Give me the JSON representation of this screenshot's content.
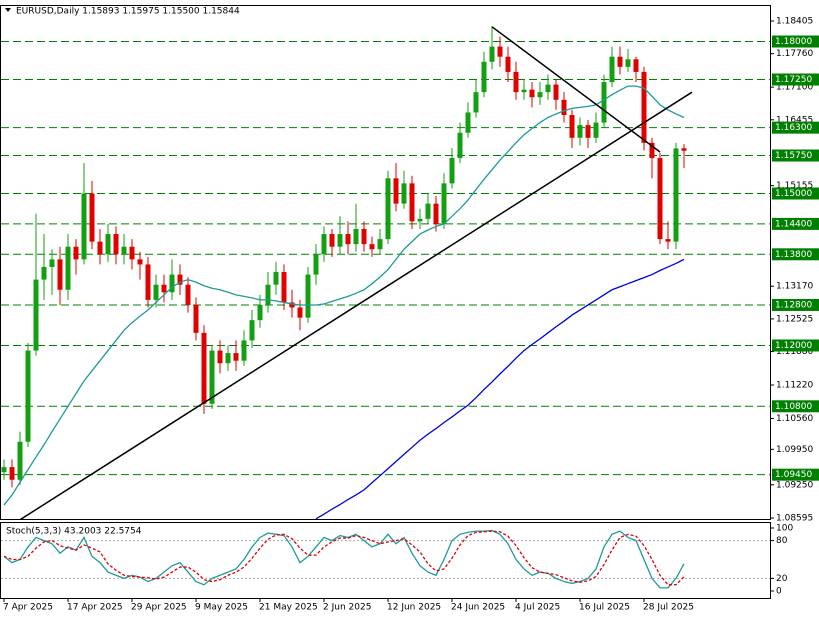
{
  "chart_data": {
    "type": "candlestick",
    "title": "EURUSD,Daily  1.15893 1.15975 1.15500 1.15844",
    "categories": [
      "7 Apr 2025",
      null,
      null,
      null,
      null,
      null,
      null,
      null,
      "17 Apr 2025",
      null,
      null,
      null,
      null,
      null,
      null,
      null,
      "29 Apr 2025",
      null,
      null,
      null,
      null,
      null,
      null,
      null,
      "9 May 2025",
      null,
      null,
      null,
      null,
      null,
      null,
      null,
      "21 May 2025",
      null,
      null,
      null,
      null,
      null,
      null,
      null,
      "2 Jun 2025",
      null,
      null,
      null,
      null,
      null,
      null,
      null,
      "12 Jun 2025",
      null,
      null,
      null,
      null,
      null,
      null,
      null,
      "24 Jun 2025",
      null,
      null,
      null,
      null,
      null,
      null,
      null,
      "4 Jul 2025",
      null,
      null,
      null,
      null,
      null,
      null,
      null,
      "16 Jul 2025",
      null,
      null,
      null,
      null,
      null,
      null,
      null,
      "28 Jul 2025",
      null,
      null,
      null,
      null,
      null
    ],
    "open": [
      1.095,
      1.096,
      1.0935,
      1.101,
      1.119,
      1.133,
      1.1355,
      1.137,
      1.131,
      1.1395,
      1.137,
      1.15,
      1.1405,
      1.138,
      1.142,
      1.138,
      1.1395,
      1.137,
      1.136,
      1.129,
      1.132,
      1.1305,
      1.134,
      1.132,
      1.128,
      1.1225,
      1.1085,
      1.119,
      1.1165,
      1.1185,
      1.117,
      1.121,
      1.125,
      1.128,
      1.132,
      1.1345,
      1.1285,
      1.1275,
      1.1255,
      1.134,
      1.138,
      1.142,
      1.1395,
      1.142,
      1.14,
      1.143,
      1.14,
      1.139,
      1.141,
      1.153,
      1.148,
      1.152,
      1.1445,
      1.145,
      1.148,
      1.144,
      1.152,
      1.157,
      1.162,
      1.166,
      1.17,
      1.176,
      1.179,
      1.177,
      1.174,
      1.17,
      1.1705,
      1.169,
      1.17,
      1.1715,
      1.1685,
      1.1655,
      1.161,
      1.1635,
      1.161,
      1.164,
      1.172,
      1.177,
      1.175,
      1.1765,
      1.174,
      1.16,
      1.157,
      1.141,
      1.1405,
      1.15893
    ],
    "high": [
      1.0975,
      1.0975,
      1.103,
      1.1205,
      1.146,
      1.142,
      1.139,
      1.1395,
      1.142,
      1.141,
      1.156,
      1.1525,
      1.143,
      1.144,
      1.1435,
      1.142,
      1.141,
      1.1385,
      1.1375,
      1.134,
      1.134,
      1.137,
      1.136,
      1.1335,
      1.1295,
      1.124,
      1.12,
      1.121,
      1.12,
      1.121,
      1.123,
      1.127,
      1.13,
      1.1345,
      1.1365,
      1.136,
      1.131,
      1.129,
      1.1355,
      1.14,
      1.1435,
      1.143,
      1.1455,
      1.1445,
      1.148,
      1.1445,
      1.1415,
      1.143,
      1.1545,
      1.156,
      1.1545,
      1.1535,
      1.147,
      1.15,
      1.1495,
      1.154,
      1.159,
      1.164,
      1.168,
      1.1725,
      1.178,
      1.183,
      1.181,
      1.179,
      1.176,
      1.1725,
      1.172,
      1.172,
      1.1735,
      1.1725,
      1.17,
      1.1665,
      1.165,
      1.1645,
      1.166,
      1.1735,
      1.179,
      1.179,
      1.1785,
      1.177,
      1.175,
      1.161,
      1.158,
      1.1445,
      1.16,
      1.15975
    ],
    "low": [
      1.0935,
      1.092,
      1.0925,
      1.1,
      1.118,
      1.129,
      1.13,
      1.128,
      1.129,
      1.134,
      1.136,
      1.139,
      1.136,
      1.1365,
      1.136,
      1.136,
      1.135,
      1.133,
      1.1275,
      1.1275,
      1.1285,
      1.129,
      1.13,
      1.1265,
      1.121,
      1.1065,
      1.1075,
      1.1145,
      1.115,
      1.115,
      1.116,
      1.1195,
      1.1235,
      1.1265,
      1.13,
      1.127,
      1.1255,
      1.123,
      1.1245,
      1.132,
      1.1365,
      1.1375,
      1.138,
      1.138,
      1.1385,
      1.1385,
      1.1375,
      1.138,
      1.14,
      1.1465,
      1.147,
      1.143,
      1.143,
      1.144,
      1.1425,
      1.143,
      1.151,
      1.156,
      1.161,
      1.165,
      1.169,
      1.1745,
      1.175,
      1.172,
      1.1685,
      1.1685,
      1.167,
      1.1675,
      1.1685,
      1.1665,
      1.164,
      1.159,
      1.1595,
      1.159,
      1.16,
      1.163,
      1.171,
      1.1735,
      1.174,
      1.172,
      1.1585,
      1.153,
      1.14,
      1.139,
      1.139,
      1.155
    ],
    "close": [
      1.096,
      1.0935,
      1.101,
      1.119,
      1.133,
      1.1355,
      1.137,
      1.131,
      1.1395,
      1.137,
      1.15,
      1.1405,
      1.138,
      1.142,
      1.138,
      1.1395,
      1.137,
      1.136,
      1.129,
      1.132,
      1.1305,
      1.134,
      1.132,
      1.128,
      1.1225,
      1.1085,
      1.119,
      1.1165,
      1.1185,
      1.117,
      1.121,
      1.125,
      1.128,
      1.132,
      1.1345,
      1.1285,
      1.1275,
      1.1255,
      1.134,
      1.138,
      1.142,
      1.1395,
      1.142,
      1.14,
      1.143,
      1.14,
      1.139,
      1.141,
      1.153,
      1.148,
      1.152,
      1.1445,
      1.145,
      1.148,
      1.144,
      1.152,
      1.157,
      1.162,
      1.166,
      1.17,
      1.176,
      1.179,
      1.177,
      1.174,
      1.17,
      1.1705,
      1.169,
      1.17,
      1.1715,
      1.1685,
      1.1655,
      1.161,
      1.1635,
      1.161,
      1.164,
      1.172,
      1.177,
      1.175,
      1.1765,
      1.174,
      1.16,
      1.157,
      1.141,
      1.1405,
      1.1589,
      1.15844
    ],
    "up_color": "#12a012",
    "down_color": "#e00000",
    "series": [
      {
        "color": "#1f9a9a",
        "values": [
          1.0885,
          1.0905,
          1.093,
          1.0955,
          1.098,
          1.1004,
          1.103,
          1.1055,
          1.108,
          1.1105,
          1.113,
          1.115,
          1.117,
          1.119,
          1.121,
          1.123,
          1.1245,
          1.1258,
          1.127,
          1.1285,
          1.13,
          1.1315,
          1.1325,
          1.133,
          1.1325,
          1.1318,
          1.1313,
          1.131,
          1.1305,
          1.13,
          1.1297,
          1.1294,
          1.129,
          1.129,
          1.1288,
          1.1285,
          1.1282,
          1.128,
          1.128,
          1.128,
          1.1282,
          1.1287,
          1.1292,
          1.1297,
          1.1303,
          1.131,
          1.1322,
          1.1335,
          1.135,
          1.137,
          1.139,
          1.1405,
          1.142,
          1.1428,
          1.1435,
          1.144,
          1.1455,
          1.147,
          1.1487,
          1.1508,
          1.1528,
          1.1547,
          1.1566,
          1.1583,
          1.16,
          1.1616,
          1.1628,
          1.164,
          1.165,
          1.1657,
          1.1663,
          1.1668,
          1.167,
          1.1672,
          1.1675,
          1.1685,
          1.1695,
          1.1704,
          1.1712,
          1.1712,
          1.1708,
          1.1692,
          1.1675,
          1.1665,
          1.1657,
          1.165
        ]
      },
      {
        "color": "#0000e0",
        "values": [
          null,
          null,
          null,
          null,
          null,
          null,
          null,
          null,
          null,
          null,
          null,
          null,
          null,
          null,
          null,
          null,
          null,
          null,
          null,
          null,
          null,
          null,
          null,
          null,
          null,
          null,
          null,
          null,
          null,
          null,
          null,
          null,
          null,
          null,
          null,
          null,
          null,
          null,
          null,
          1.0858,
          1.0867,
          1.0877,
          1.0886,
          1.0896,
          1.0905,
          1.0915,
          1.0929,
          1.0943,
          1.0957,
          1.0971,
          1.0985,
          1.0999,
          1.1013,
          1.1025,
          1.1036,
          1.1048,
          1.1059,
          1.1071,
          1.1082,
          1.1097,
          1.1113,
          1.1128,
          1.1144,
          1.1159,
          1.1175,
          1.119,
          1.1202,
          1.1213,
          1.1225,
          1.1237,
          1.1248,
          1.126,
          1.127,
          1.128,
          1.129,
          1.13,
          1.131,
          1.1316,
          1.1322,
          1.1328,
          1.1334,
          1.134,
          1.1348,
          1.1355,
          1.1362,
          1.137
        ]
      }
    ],
    "trendlines": [
      {
        "x": [
          2,
          86
        ],
        "y": [
          1.0856,
          1.17
        ],
        "color": "#000000"
      },
      {
        "x": [
          61,
          82
        ],
        "y": [
          1.1829,
          1.1582
        ],
        "color": "#000000"
      }
    ],
    "level_color": "#008000",
    "ylim": [
      1.08595,
      1.18405
    ],
    "yticks": [
      1.18405,
      {
        "value": 1.1776,
        "label": "1.17760"
      },
      {
        "value": 1.171,
        "label": "1.17100"
      },
      1.16455,
      1.15155,
      {
        "value": 1.1317,
        "label": "1.13170"
      },
      1.12525,
      {
        "value": 1.1188,
        "label": "1.11880"
      },
      {
        "value": 1.1122,
        "label": "1.11220"
      },
      {
        "value": 1.1056,
        "label": "1.10560"
      },
      {
        "value": 1.0995,
        "label": "1.09950"
      },
      {
        "value": 1.0925,
        "label": "1.09250"
      },
      1.08595
    ],
    "levels": [
      {
        "value": 1.18,
        "label": "1.18000"
      },
      {
        "value": 1.1725,
        "label": "1.17250"
      },
      {
        "value": 1.163,
        "label": "1.16300"
      },
      {
        "value": 1.1575,
        "label": "1.15750"
      },
      {
        "value": 1.15,
        "label": "1.15000"
      },
      {
        "value": 1.144,
        "label": "1.14400"
      },
      {
        "value": 1.138,
        "label": "1.13800"
      },
      {
        "value": 1.128,
        "label": "1.12800"
      },
      {
        "value": 1.12,
        "label": "1.12000"
      },
      {
        "value": 1.108,
        "label": "1.10800"
      },
      {
        "value": 1.0945,
        "label": "1.09450"
      }
    ],
    "indicator": {
      "title": "Stoch(5,3,3) 43.2003 22.5754",
      "ylim": [
        0,
        100
      ],
      "yticks": [
        100,
        80,
        20,
        0
      ],
      "levels": [
        80,
        20
      ],
      "series": [
        {
          "color": "#1f9a9a",
          "dash": false,
          "values": [
            55,
            45,
            50,
            70,
            85,
            80,
            75,
            60,
            70,
            65,
            85,
            55,
            45,
            30,
            25,
            20,
            25,
            22,
            15,
            20,
            30,
            40,
            45,
            30,
            15,
            10,
            20,
            25,
            30,
            35,
            50,
            70,
            85,
            92,
            90,
            88,
            70,
            45,
            55,
            70,
            85,
            80,
            88,
            85,
            90,
            80,
            70,
            75,
            90,
            75,
            85,
            60,
            40,
            30,
            25,
            50,
            80,
            90,
            93,
            95,
            95,
            96,
            90,
            75,
            50,
            35,
            25,
            30,
            28,
            20,
            15,
            12,
            15,
            20,
            35,
            70,
            90,
            95,
            85,
            80,
            50,
            20,
            5,
            5,
            20,
            43.2003
          ]
        },
        {
          "color": "#e00000",
          "dash": true,
          "values": [
            55,
            50,
            50,
            55,
            68,
            78,
            80,
            72,
            68,
            65,
            73,
            68,
            62,
            43,
            33,
            25,
            23,
            22,
            21,
            19,
            22,
            30,
            38,
            38,
            30,
            18,
            15,
            18,
            25,
            30,
            38,
            52,
            68,
            82,
            89,
            90,
            83,
            68,
            57,
            57,
            70,
            78,
            84,
            84,
            88,
            85,
            80,
            75,
            78,
            80,
            83,
            73,
            62,
            43,
            32,
            35,
            52,
            73,
            88,
            93,
            94,
            95,
            94,
            87,
            72,
            53,
            37,
            30,
            28,
            26,
            21,
            16,
            14,
            16,
            23,
            42,
            65,
            85,
            90,
            87,
            72,
            50,
            25,
            10,
            10,
            22.5754
          ]
        }
      ]
    }
  }
}
